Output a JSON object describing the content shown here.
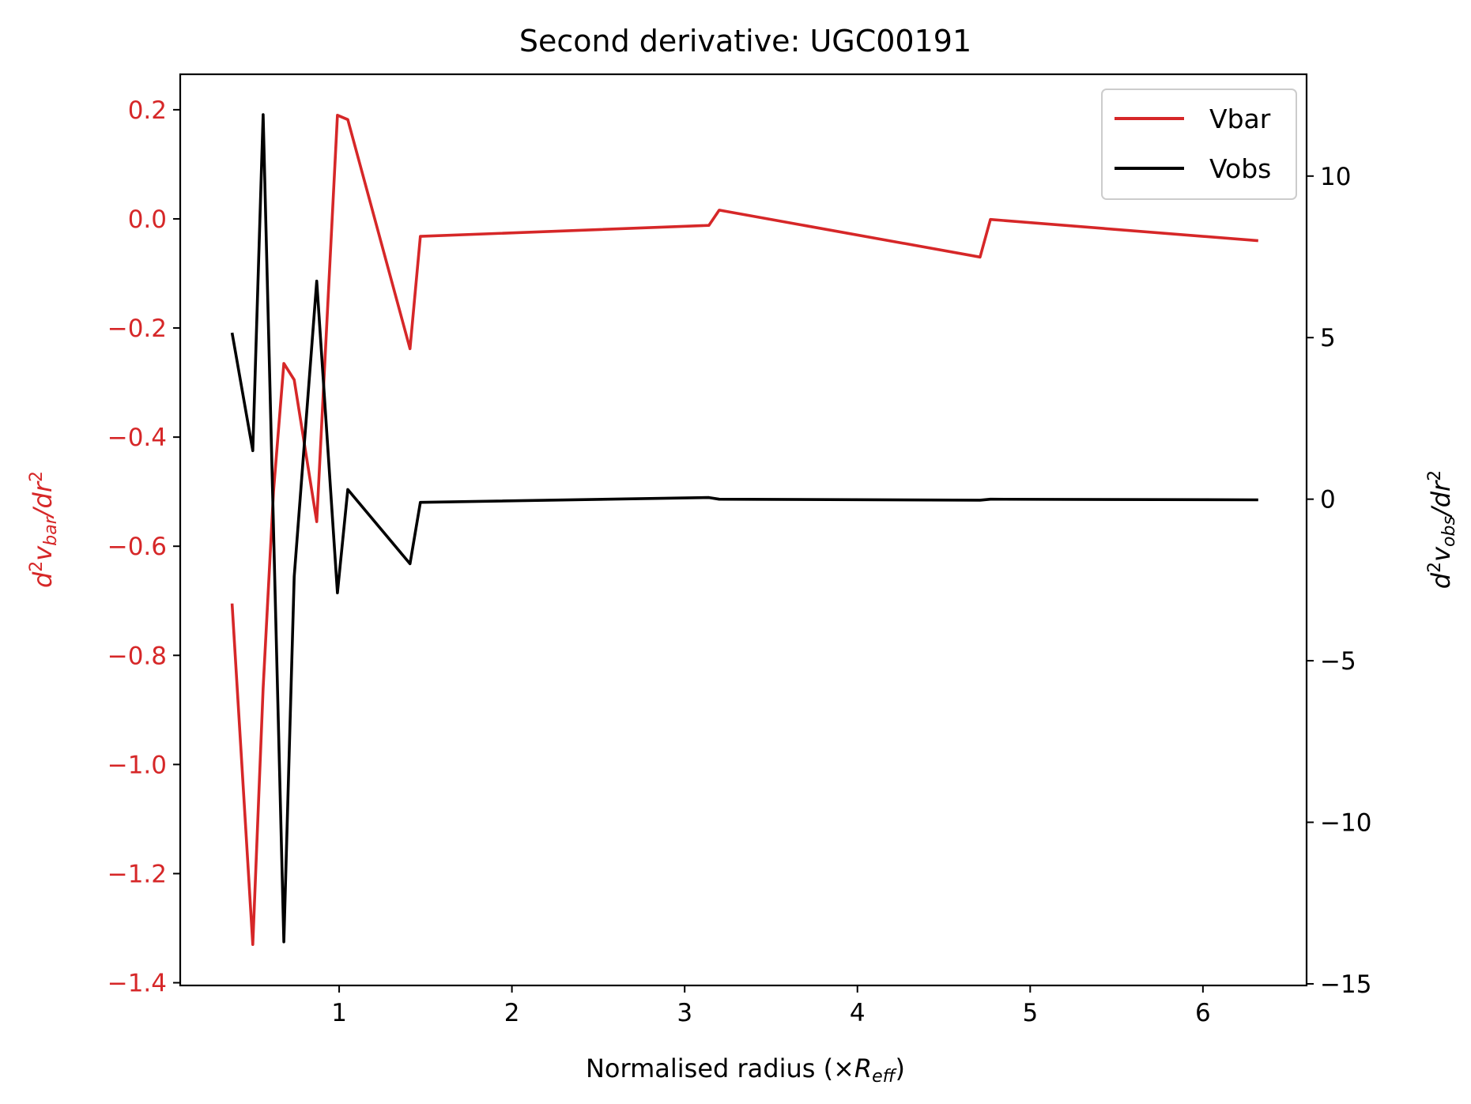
{
  "chart_data": {
    "type": "line",
    "title": "Second derivative: UGC00191",
    "xlabel": {
      "base": "Normalised radius (×",
      "math": "R",
      "sub": "eff",
      "close": ")"
    },
    "ylabel_left": {
      "d": "d",
      "sup": "2",
      "v": "v",
      "sub": "bar",
      "den": "/dr",
      "densup": "2"
    },
    "ylabel_right": {
      "d": "d",
      "sup": "2",
      "v": "v",
      "sub": "obs",
      "den": "/dr",
      "densup": "2"
    },
    "xlim": [
      0.08,
      6.6
    ],
    "ylim_left": [
      -1.405,
      0.265
    ],
    "ylim_right": [
      -15.05,
      13.15
    ],
    "xticks": [
      1,
      2,
      3,
      4,
      5,
      6
    ],
    "xtick_labels": [
      "1",
      "2",
      "3",
      "4",
      "5",
      "6"
    ],
    "yticks_left": [
      0.2,
      0.0,
      -0.2,
      -0.4,
      -0.6,
      -0.8,
      -1.0,
      -1.2,
      -1.4
    ],
    "yticks_left_labels": [
      "0.2",
      "0.0",
      "−0.2",
      "−0.4",
      "−0.6",
      "−0.8",
      "−1.0",
      "−1.2",
      "−1.4"
    ],
    "yticks_right": [
      10,
      5,
      0,
      -5,
      -10,
      -15
    ],
    "yticks_right_labels": [
      "10",
      "5",
      "0",
      "−5",
      "−10",
      "−15"
    ],
    "legend_position": "upper right",
    "colors": {
      "vbar": "#d62728",
      "vobs": "#000000",
      "left_axis": "#d62728"
    },
    "series": [
      {
        "name": "Vbar",
        "axis": "left",
        "x": [
          0.38,
          0.5,
          0.56,
          0.62,
          0.68,
          0.74,
          0.87,
          0.99,
          1.05,
          1.41,
          1.47,
          3.14,
          3.2,
          4.71,
          4.77,
          6.32
        ],
        "y": [
          -0.705,
          -1.33,
          -0.86,
          -0.5,
          -0.265,
          -0.295,
          -0.555,
          0.19,
          0.182,
          -0.238,
          -0.032,
          -0.012,
          0.016,
          -0.07,
          -0.001,
          -0.04
        ]
      },
      {
        "name": "Vobs",
        "axis": "right",
        "x": [
          0.38,
          0.5,
          0.56,
          0.68,
          0.74,
          0.87,
          0.99,
          1.05,
          1.41,
          1.47,
          3.14,
          3.2,
          4.71,
          4.77,
          6.32
        ],
        "y": [
          5.15,
          1.5,
          11.9,
          -13.7,
          -2.4,
          6.75,
          -2.9,
          0.3,
          -2.0,
          -0.1,
          0.05,
          0.0,
          -0.03,
          0.0,
          -0.02
        ]
      }
    ]
  }
}
